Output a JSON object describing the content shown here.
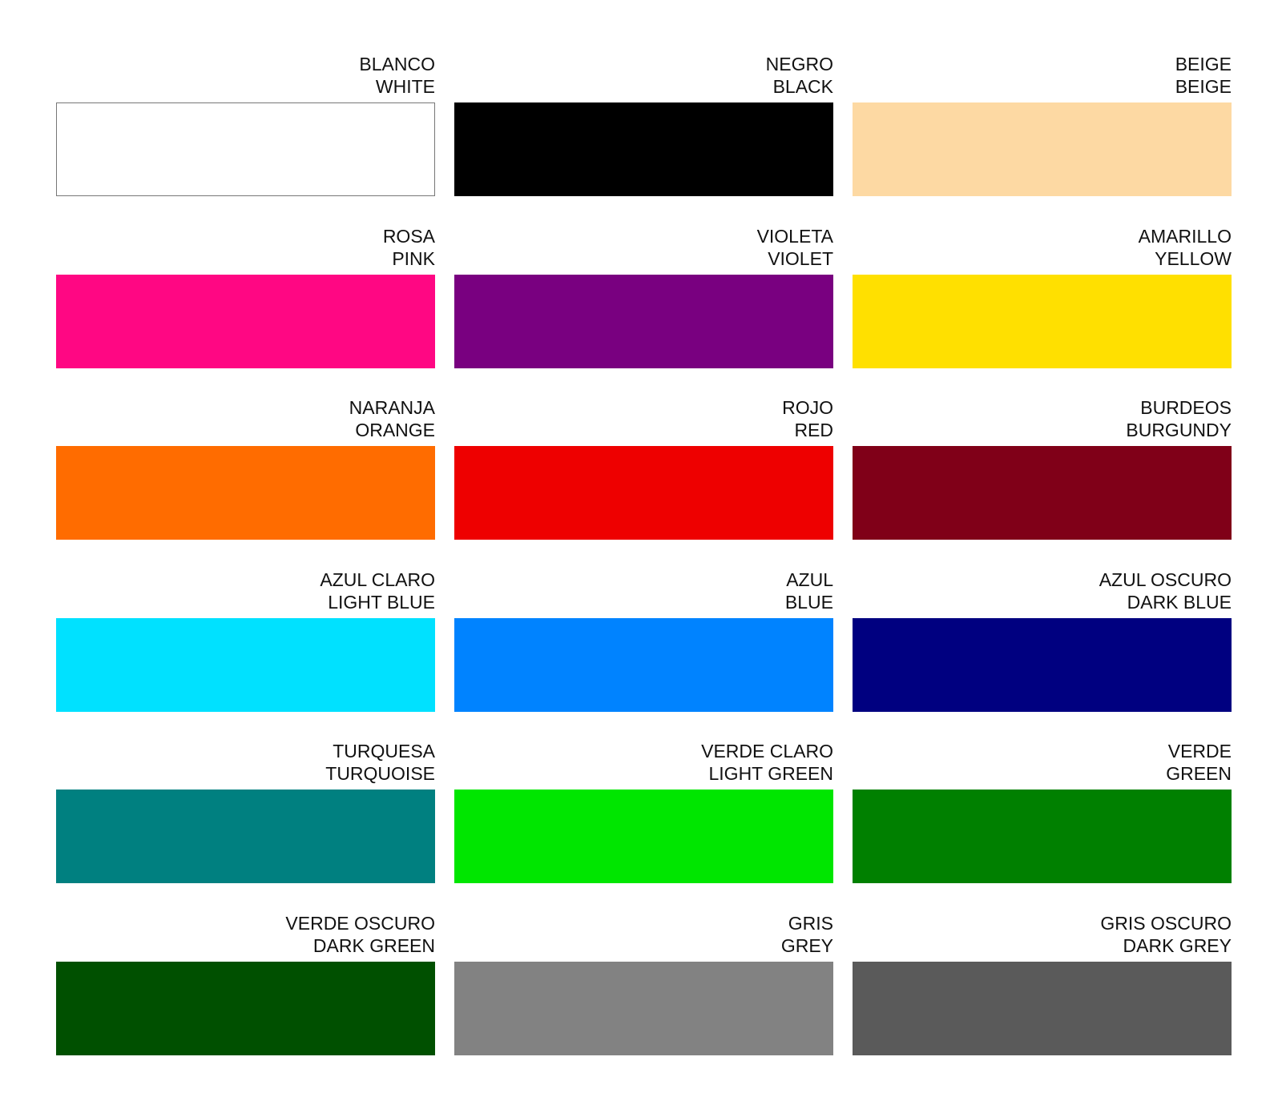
{
  "swatches": [
    {
      "spanish": "BLANCO",
      "english": "WHITE",
      "color": "#ffffff"
    },
    {
      "spanish": "NEGRO",
      "english": "BLACK",
      "color": "#000000"
    },
    {
      "spanish": "BEIGE",
      "english": "BEIGE",
      "color": "#fdd9a3"
    },
    {
      "spanish": "ROSA",
      "english": "PINK",
      "color": "#ff0783"
    },
    {
      "spanish": "VIOLETA",
      "english": "VIOLET",
      "color": "#790080"
    },
    {
      "spanish": "AMARILLO",
      "english": "YELLOW",
      "color": "#ffe000"
    },
    {
      "spanish": "NARANJA",
      "english": "ORANGE",
      "color": "#ff6c00"
    },
    {
      "spanish": "ROJO",
      "english": "RED",
      "color": "#ee0000"
    },
    {
      "spanish": "BURDEOS",
      "english": "BURGUNDY",
      "color": "#800018"
    },
    {
      "spanish": "AZUL CLARO",
      "english": "LIGHT BLUE",
      "color": "#00e1ff"
    },
    {
      "spanish": "AZUL",
      "english": "BLUE",
      "color": "#0083ff"
    },
    {
      "spanish": "AZUL OSCURO",
      "english": "DARK BLUE",
      "color": "#000080"
    },
    {
      "spanish": "TURQUESA",
      "english": "TURQUOISE",
      "color": "#008080"
    },
    {
      "spanish": "VERDE CLARO",
      "english": "LIGHT GREEN",
      "color": "#00e600"
    },
    {
      "spanish": "VERDE",
      "english": "GREEN",
      "color": "#008000"
    },
    {
      "spanish": "VERDE OSCURO",
      "english": "DARK GREEN",
      "color": "#005000"
    },
    {
      "spanish": "GRIS",
      "english": "GREY",
      "color": "#828282"
    },
    {
      "spanish": "GRIS OSCURO",
      "english": "DARK GREY",
      "color": "#5a5a5a"
    }
  ]
}
